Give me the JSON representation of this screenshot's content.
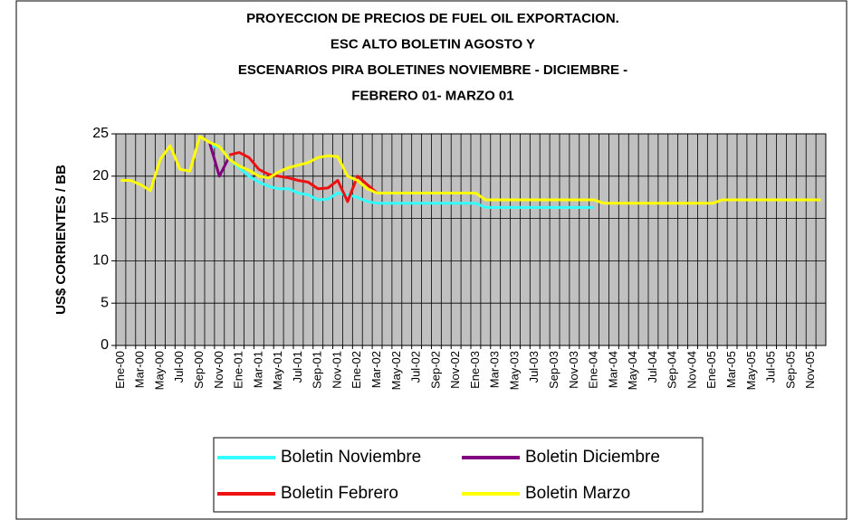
{
  "chart_data": {
    "type": "line",
    "title": [
      "PROYECCION DE PRECIOS DE FUEL OIL EXPORTACION.",
      "ESC ALTO BOLETIN AGOSTO Y",
      "ESCENARIOS  PIRA BOLETINES   NOVIEMBRE - DICIEMBRE -",
      "FEBRERO 01- MARZO 01"
    ],
    "y_label": "US$ CORRIENTES / BB",
    "categories": [
      "Ene-00",
      null,
      "Mar-00",
      null,
      "May-00",
      null,
      "Jul-00",
      null,
      "Sep-00",
      null,
      "Nov-00",
      null,
      "Ene-01",
      null,
      "Mar-01",
      null,
      "May-01",
      null,
      "Jul-01",
      null,
      "Sep-01",
      null,
      "Nov-01",
      null,
      "Ene-02",
      null,
      "Mar-02",
      null,
      "May-02",
      null,
      "Jul-02",
      null,
      "Sep-02",
      null,
      "Nov-02",
      null,
      "Ene-03",
      null,
      "Mar-03",
      null,
      "May-03",
      null,
      "Jul-03",
      null,
      "Sep-03",
      null,
      "Nov-03",
      null,
      "Ene-04",
      null,
      "Mar-04",
      null,
      "May-04",
      null,
      "Jul-04",
      null,
      "Sep-04",
      null,
      "Nov-04",
      null,
      "Ene-05",
      null,
      "Mar-05",
      null,
      "May-05",
      null,
      "Jul-05",
      null,
      "Sep-05",
      null,
      "Nov-05",
      null
    ],
    "series": [
      {
        "name": "Boletin Noviembre",
        "color": "#33ffff",
        "values": [
          null,
          null,
          null,
          null,
          null,
          null,
          null,
          null,
          null,
          23.5,
          23.5,
          22,
          21,
          20,
          19.3,
          18.8,
          18.5,
          18.5,
          18,
          17.8,
          17.2,
          17.3,
          18,
          17.8,
          17.5,
          17,
          16.8,
          16.8,
          16.8,
          16.8,
          16.8,
          16.8,
          16.8,
          16.8,
          16.8,
          16.8,
          16.8,
          16.3,
          16.3,
          16.3,
          16.3,
          16.3,
          16.3,
          16.3,
          16.3,
          16.3,
          16.3,
          16.3,
          16.3,
          null,
          null,
          null,
          null,
          null,
          null,
          null,
          null,
          null,
          null,
          null,
          null,
          null,
          null,
          null,
          null,
          null,
          null,
          null,
          null,
          null,
          null,
          null
        ]
      },
      {
        "name": "Boletin Diciembre",
        "color": "#800080",
        "values": [
          null,
          null,
          null,
          null,
          null,
          null,
          null,
          null,
          null,
          24,
          20,
          22.3,
          null,
          null,
          null,
          null,
          null,
          null,
          null,
          null,
          null,
          null,
          null,
          null,
          null,
          null,
          null,
          null,
          null,
          null,
          null,
          null,
          null,
          null,
          null,
          null,
          null,
          null,
          null,
          null,
          null,
          null,
          null,
          null,
          null,
          null,
          null,
          null,
          null,
          null,
          null,
          null,
          null,
          null,
          null,
          null,
          null,
          null,
          null,
          null,
          null,
          null,
          null,
          null,
          null,
          null,
          null,
          null,
          null,
          null,
          null,
          null
        ]
      },
      {
        "name": "Boletin Febrero",
        "color": "#ee1111",
        "values": [
          null,
          null,
          null,
          null,
          null,
          null,
          null,
          null,
          null,
          null,
          null,
          22.5,
          22.8,
          22.2,
          20.8,
          20.2,
          20,
          19.8,
          19.5,
          19.3,
          18.5,
          18.6,
          19.5,
          17,
          20,
          19,
          18,
          null,
          null,
          null,
          null,
          null,
          null,
          null,
          null,
          null,
          null,
          null,
          null,
          null,
          null,
          null,
          null,
          null,
          null,
          null,
          null,
          null,
          null,
          null,
          null,
          null,
          null,
          null,
          null,
          null,
          null,
          null,
          null,
          null,
          null,
          null,
          null,
          null,
          null,
          null,
          null,
          null,
          null,
          null,
          null,
          null
        ]
      },
      {
        "name": "Boletin Marzo",
        "color": "#ffff00",
        "values": [
          19.5,
          19.5,
          19,
          18.3,
          22,
          23.6,
          20.8,
          20.6,
          24.7,
          24,
          23.5,
          22,
          21.2,
          20.7,
          20,
          19.8,
          20.5,
          21,
          21.3,
          21.6,
          22.2,
          22.4,
          22.3,
          20,
          19.5,
          18.5,
          18,
          18,
          18,
          18,
          18,
          18,
          18,
          18,
          18,
          18,
          18,
          17.2,
          17.2,
          17.2,
          17.2,
          17.2,
          17.2,
          17.2,
          17.2,
          17.2,
          17.2,
          17.2,
          17.2,
          16.8,
          16.8,
          16.8,
          16.8,
          16.8,
          16.8,
          16.8,
          16.8,
          16.8,
          16.8,
          16.8,
          16.8,
          17.2,
          17.2,
          17.2,
          17.2,
          17.2,
          17.2,
          17.2,
          17.2,
          17.2,
          17.2,
          17.2
        ]
      }
    ],
    "ylim": [
      0,
      25
    ],
    "yticks": [
      0,
      5,
      10,
      15,
      20,
      25
    ],
    "grid": true,
    "plot_color": "#c0c0c0",
    "legend": "bottom"
  }
}
